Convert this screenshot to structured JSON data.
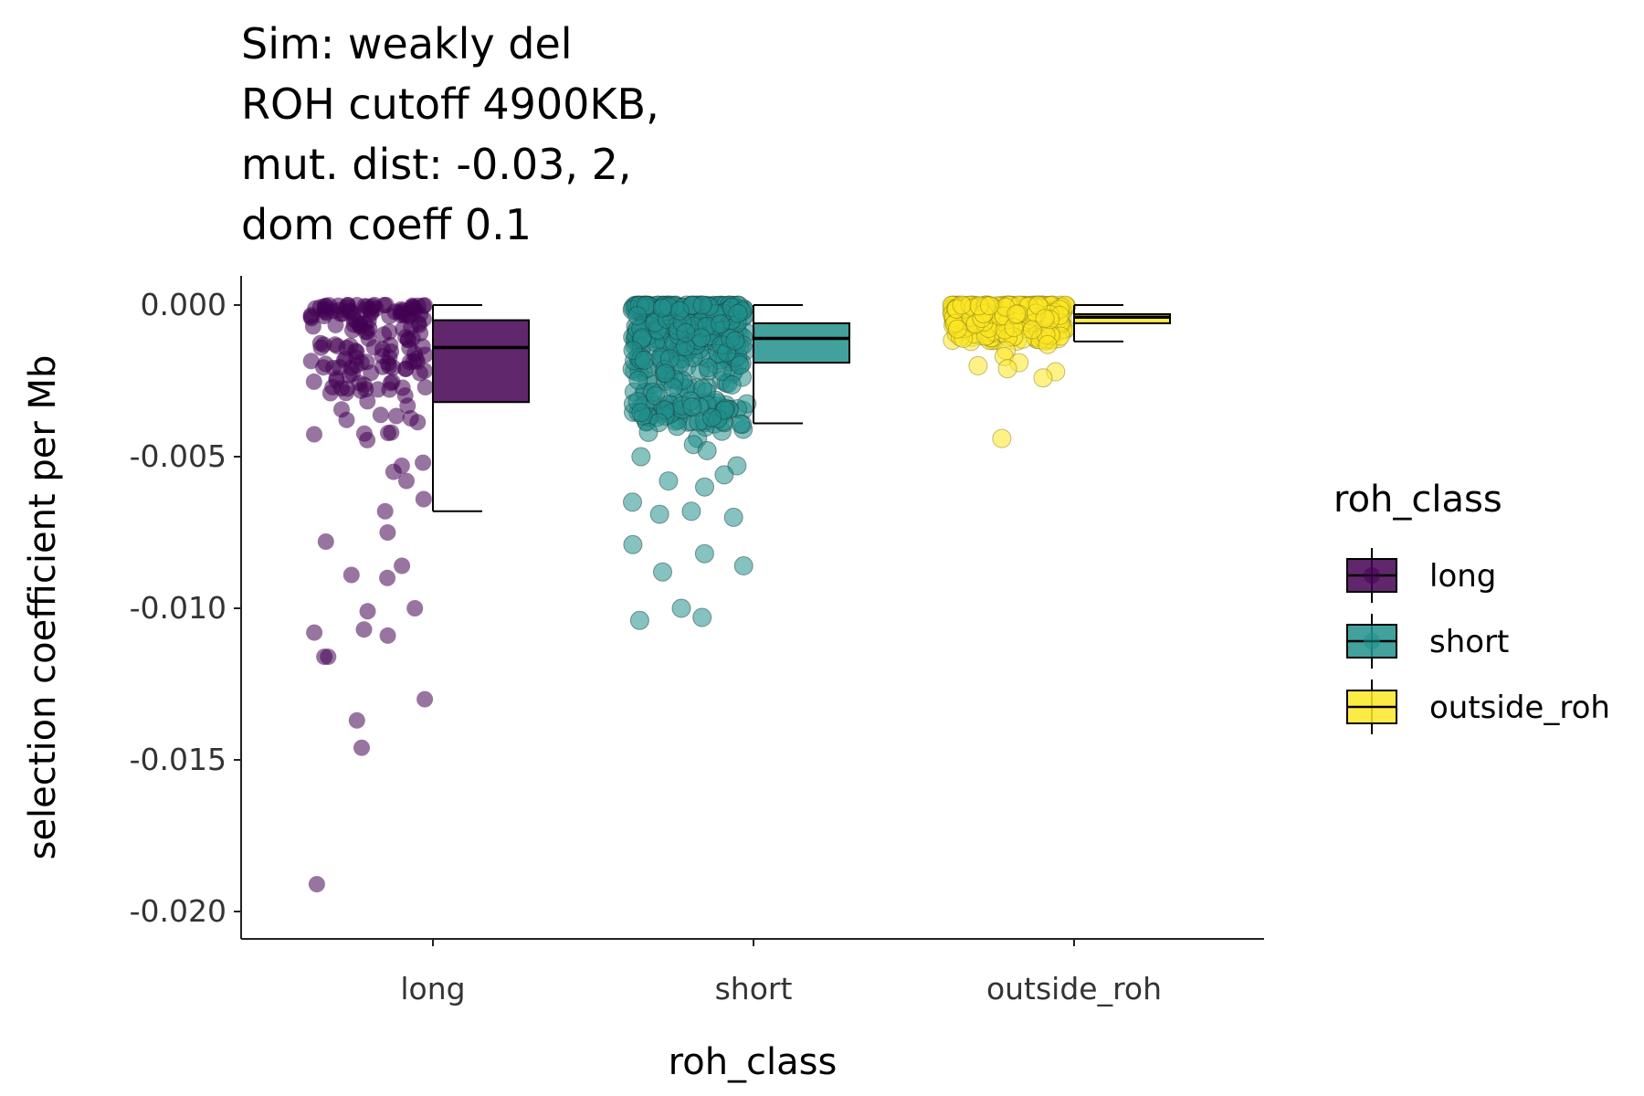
{
  "chart_data": {
    "type": "boxplot",
    "title": [
      "Sim: weakly del",
      "ROH cutoff 4900KB,",
      "mut. dist: -0.03, 2,",
      "dom coeff 0.1"
    ],
    "xlabel": "roh_class",
    "ylabel": "selection coefficient per Mb",
    "categories": [
      "long",
      "short",
      "outside_roh"
    ],
    "ylim": [
      -0.021,
      0.0005
    ],
    "yticks": [
      0.0,
      -0.005,
      -0.01,
      -0.015,
      -0.02
    ],
    "ytick_labels": [
      "0.000",
      "-0.005",
      "-0.010",
      "-0.015",
      "-0.020"
    ],
    "grid": false,
    "legend": {
      "title": "roh_class",
      "position": "right",
      "entries": [
        "long",
        "short",
        "outside_roh"
      ]
    },
    "colors": {
      "long": "#440154",
      "short": "#21908c",
      "outside_roh": "#fde725"
    },
    "boxes": [
      {
        "name": "long",
        "whisker_high": 0.0,
        "q3": -0.0005,
        "median": -0.0014,
        "q1": -0.0032,
        "whisker_low": -0.0068
      },
      {
        "name": "short",
        "whisker_high": 0.0,
        "q3": -0.0006,
        "median": -0.0011,
        "q1": -0.0019,
        "whisker_low": -0.0039
      },
      {
        "name": "outside_roh",
        "whisker_high": 0.0,
        "q3": -0.0003,
        "median": -0.0004,
        "q1": -0.0006,
        "whisker_low": -0.0012
      }
    ],
    "outliers": {
      "long": [
        -0.0052,
        -0.0053,
        -0.0055,
        -0.0058,
        -0.0064,
        -0.0068,
        -0.0075,
        -0.0078,
        -0.0086,
        -0.0089,
        -0.009,
        -0.0101,
        -0.01,
        -0.0107,
        -0.0108,
        -0.0109,
        -0.0116,
        -0.0116,
        -0.013,
        -0.0137,
        -0.0146,
        -0.0191
      ],
      "short": [
        -0.0042,
        -0.0044,
        -0.0046,
        -0.0048,
        -0.005,
        -0.0053,
        -0.0056,
        -0.0058,
        -0.006,
        -0.0065,
        -0.0068,
        -0.0069,
        -0.007,
        -0.0079,
        -0.0082,
        -0.0086,
        -0.0088,
        -0.01,
        -0.0103,
        -0.0104
      ],
      "outside_roh": [
        -0.0013,
        -0.0015,
        -0.0017,
        -0.0019,
        -0.002,
        -0.0021,
        -0.0022,
        -0.0024,
        -0.0044
      ]
    }
  }
}
